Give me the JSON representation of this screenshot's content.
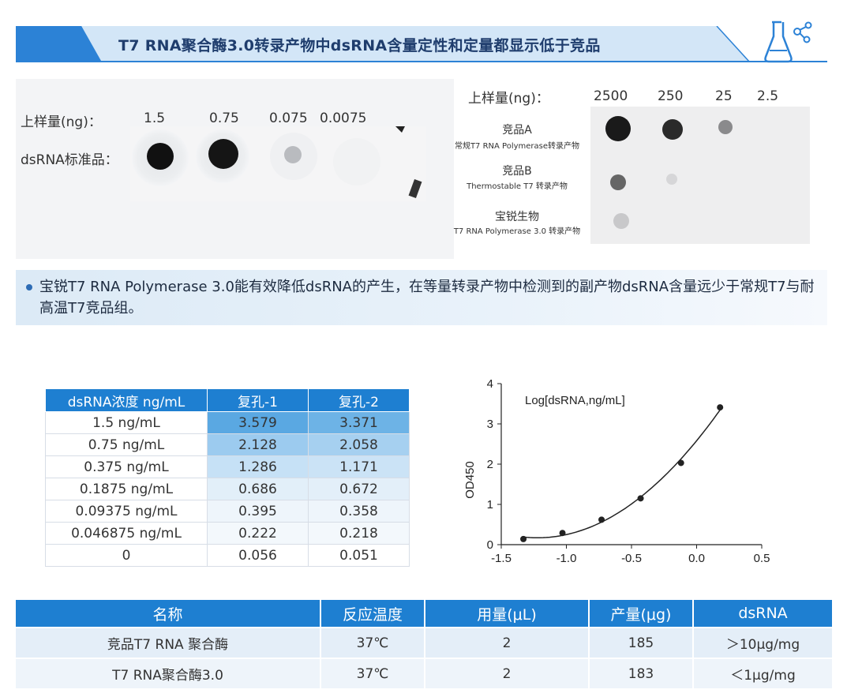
{
  "header": {
    "title": "T7 RNA聚合酶3.0转录产物中dsRNA含量定性和定量都显示低于竞品"
  },
  "colors": {
    "brand_blue": "#1e7fd1",
    "title_navy": "#1f3d6d",
    "banner_light": "#cfe3f5"
  },
  "icons": {
    "flask": "flask-icon"
  },
  "std_blot": {
    "load_label": "上样量(ng)：",
    "row_label": "dsRNA标准品：",
    "amounts": [
      "1.5",
      "0.75",
      "0.075",
      "0.0075"
    ]
  },
  "comp_blot": {
    "load_label": "上样量(ng)：",
    "amounts": [
      "2500",
      "250",
      "25",
      "2.5"
    ],
    "groups": [
      {
        "name": "竞品A",
        "desc": "常规T7 RNA Polymerase转录产物"
      },
      {
        "name": "竞品B",
        "desc": "Thermostable T7 转录产物"
      },
      {
        "name": "宝锐生物",
        "desc": "T7 RNA Polymerase 3.0 转录产物"
      }
    ]
  },
  "bullet": {
    "text": "宝锐T7 RNA Polymerase 3.0能有效降低dsRNA的产生，在等量转录产物中检测到的副产物dsRNA含量远少于常规T7与耐高温T7竞品组。"
  },
  "std_table": {
    "headers": [
      "dsRNA浓度 ng/mL",
      "复孔-1",
      "复孔-2"
    ],
    "rows": [
      [
        "1.5 ng/mL",
        "3.579",
        "3.371"
      ],
      [
        "0.75 ng/mL",
        "2.128",
        "2.058"
      ],
      [
        "0.375 ng/mL",
        "1.286",
        "1.171"
      ],
      [
        "0.1875 ng/mL",
        "0.686",
        "0.672"
      ],
      [
        "0.09375 ng/mL",
        "0.395",
        "0.358"
      ],
      [
        "0.046875 ng/mL",
        "0.222",
        "0.218"
      ],
      [
        "0",
        "0.056",
        "0.051"
      ]
    ]
  },
  "chart_data": {
    "type": "scatter",
    "title": "Log[dsRNA,ng/mL]",
    "xlabel": "",
    "ylabel": "OD450",
    "xlim": [
      -1.5,
      0.5
    ],
    "ylim": [
      0,
      4
    ],
    "xticks": [
      "-1.5",
      "-1.0",
      "-0.5",
      "0.0",
      "0.5"
    ],
    "yticks": [
      "0",
      "1",
      "2",
      "3",
      "4"
    ],
    "grid": false,
    "fit_curve": true,
    "series": [
      {
        "x": [
          -1.33,
          -1.03,
          -0.73,
          -0.43,
          -0.12,
          0.18
        ],
        "y": [
          0.14,
          0.29,
          0.62,
          1.15,
          2.03,
          3.41
        ]
      }
    ]
  },
  "bottom_table": {
    "headers": [
      "名称",
      "反应温度",
      "用量(μL)",
      "产量(μg)",
      "dsRNA"
    ],
    "rows": [
      [
        "竞品T7 RNA 聚合酶",
        "37℃",
        "2",
        "185",
        "＞10μg/mg"
      ],
      [
        "T7 RNA聚合酶3.0",
        "37℃",
        "2",
        "183",
        "＜1μg/mg"
      ]
    ]
  }
}
